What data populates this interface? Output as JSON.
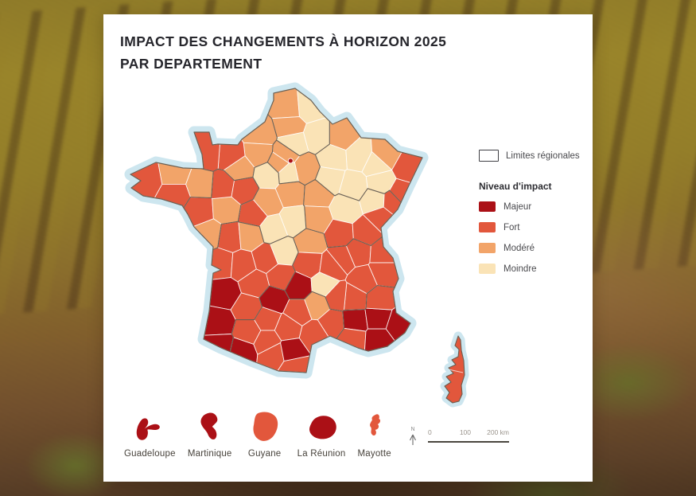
{
  "card": {
    "title_line1": "IMPACT DES CHANGEMENTS À HORIZON 2025",
    "title_line2": "PAR DEPARTEMENT"
  },
  "legend": {
    "regional_limits_label": "Limites régionales",
    "impact_title": "Niveau d'impact",
    "levels": [
      {
        "id": "majeur",
        "label": "Majeur",
        "color": "#ab1016"
      },
      {
        "id": "fort",
        "label": "Fort",
        "color": "#e2573c"
      },
      {
        "id": "modere",
        "label": "Modéré",
        "color": "#f2a469"
      },
      {
        "id": "moindre",
        "label": "Moindre",
        "color": "#fae3b6"
      }
    ]
  },
  "map": {
    "sea_halo_color": "#cde6ef",
    "department_border_color": "#ffffff",
    "region_border_color": "#6a5f52",
    "paris_level": "majeur",
    "corsica_level": "fort",
    "departments_format": [
      "code",
      "lon",
      "lat",
      "level",
      "region"
    ],
    "departments": [
      [
        "62",
        2.25,
        50.45,
        "modere",
        "HDF"
      ],
      [
        "59",
        3.15,
        50.5,
        "moindre",
        "HDF"
      ],
      [
        "80",
        2.3,
        49.9,
        "modere",
        "HDF"
      ],
      [
        "02",
        3.55,
        49.6,
        "moindre",
        "HDF"
      ],
      [
        "60",
        2.45,
        49.4,
        "moindre",
        "HDF"
      ],
      [
        "76",
        1.0,
        49.65,
        "modere",
        "NOR"
      ],
      [
        "27",
        0.95,
        49.1,
        "modere",
        "NOR"
      ],
      [
        "14",
        -0.35,
        49.0,
        "fort",
        "NOR"
      ],
      [
        "50",
        -1.35,
        49.05,
        "fort",
        "NOR"
      ],
      [
        "61",
        0.05,
        48.6,
        "modere",
        "NOR"
      ],
      [
        "08",
        4.6,
        49.6,
        "modere",
        "GES"
      ],
      [
        "51",
        4.25,
        48.95,
        "moindre",
        "GES"
      ],
      [
        "10",
        4.1,
        48.3,
        "moindre",
        "GES"
      ],
      [
        "52",
        5.15,
        48.1,
        "moindre",
        "GES"
      ],
      [
        "55",
        5.4,
        49.0,
        "moindre",
        "GES"
      ],
      [
        "54",
        6.15,
        48.75,
        "moindre",
        "GES"
      ],
      [
        "57",
        6.55,
        49.05,
        "modere",
        "GES"
      ],
      [
        "88",
        6.35,
        48.2,
        "moindre",
        "GES"
      ],
      [
        "67",
        7.6,
        48.65,
        "fort",
        "GES"
      ],
      [
        "68",
        7.25,
        47.85,
        "fort",
        "GES"
      ],
      [
        "77",
        2.95,
        48.6,
        "modere",
        "IDF"
      ],
      [
        "78",
        1.85,
        48.8,
        "modere",
        "IDF"
      ],
      [
        "95",
        2.1,
        49.05,
        "modere",
        "IDF"
      ],
      [
        "91",
        2.25,
        48.5,
        "moindre",
        "IDF"
      ],
      [
        "28",
        1.35,
        48.45,
        "moindre",
        "CVL"
      ],
      [
        "45",
        2.35,
        47.9,
        "modere",
        "CVL"
      ],
      [
        "41",
        1.3,
        47.6,
        "modere",
        "CVL"
      ],
      [
        "18",
        2.5,
        47.05,
        "moindre",
        "CVL"
      ],
      [
        "36",
        1.55,
        46.8,
        "moindre",
        "CVL"
      ],
      [
        "37",
        0.7,
        47.25,
        "fort",
        "CVL"
      ],
      [
        "89",
        3.55,
        47.85,
        "modere",
        "BFC"
      ],
      [
        "21",
        4.8,
        47.4,
        "moindre",
        "BFC"
      ],
      [
        "58",
        3.5,
        47.1,
        "modere",
        "BFC"
      ],
      [
        "71",
        4.55,
        46.65,
        "fort",
        "BFC"
      ],
      [
        "70",
        6.1,
        47.65,
        "moindre",
        "BFC"
      ],
      [
        "25",
        6.35,
        47.15,
        "fort",
        "BFC"
      ],
      [
        "39",
        5.7,
        46.7,
        "fort",
        "BFC"
      ],
      [
        "90",
        6.9,
        47.62,
        "fort",
        "BFC"
      ],
      [
        "29",
        -4.05,
        48.3,
        "fort",
        "BRE"
      ],
      [
        "22",
        -2.85,
        48.45,
        "modere",
        "BRE"
      ],
      [
        "56",
        -2.85,
        47.85,
        "fort",
        "BRE"
      ],
      [
        "35",
        -1.65,
        48.15,
        "modere",
        "BRE"
      ],
      [
        "44",
        -1.7,
        47.35,
        "fort",
        "PDL"
      ],
      [
        "49",
        -0.55,
        47.4,
        "modere",
        "PDL"
      ],
      [
        "53",
        -0.65,
        48.1,
        "fort",
        "PDL"
      ],
      [
        "72",
        0.2,
        48.0,
        "fort",
        "PDL"
      ],
      [
        "85",
        -1.3,
        46.65,
        "modere",
        "PDL"
      ],
      [
        "79",
        -0.35,
        46.55,
        "fort",
        "NAQ"
      ],
      [
        "86",
        0.5,
        46.6,
        "modere",
        "NAQ"
      ],
      [
        "17",
        -0.75,
        45.75,
        "fort",
        "NAQ"
      ],
      [
        "16",
        0.2,
        45.7,
        "fort",
        "NAQ"
      ],
      [
        "87",
        1.25,
        45.9,
        "fort",
        "NAQ"
      ],
      [
        "23",
        2.0,
        46.1,
        "moindre",
        "NAQ"
      ],
      [
        "19",
        1.9,
        45.35,
        "fort",
        "NAQ"
      ],
      [
        "24",
        0.75,
        45.15,
        "fort",
        "NAQ"
      ],
      [
        "33",
        -0.6,
        44.85,
        "majeur",
        "NAQ"
      ],
      [
        "40",
        -0.85,
        43.95,
        "majeur",
        "NAQ"
      ],
      [
        "47",
        0.45,
        44.4,
        "fort",
        "NAQ"
      ],
      [
        "64",
        -0.8,
        43.25,
        "majeur",
        "NAQ"
      ],
      [
        "65",
        0.15,
        43.1,
        "majeur",
        "OCC"
      ],
      [
        "32",
        0.45,
        43.7,
        "fort",
        "OCC"
      ],
      [
        "82",
        1.3,
        44.05,
        "fort",
        "OCC"
      ],
      [
        "46",
        1.6,
        44.65,
        "majeur",
        "OCC"
      ],
      [
        "31",
        1.3,
        43.4,
        "fort",
        "OCC"
      ],
      [
        "09",
        1.6,
        43.0,
        "fort",
        "OCC"
      ],
      [
        "81",
        2.2,
        43.8,
        "fort",
        "OCC"
      ],
      [
        "12",
        2.7,
        44.3,
        "fort",
        "OCC"
      ],
      [
        "48",
        3.5,
        44.5,
        "modere",
        "OCC"
      ],
      [
        "30",
        4.2,
        43.95,
        "fort",
        "OCC"
      ],
      [
        "34",
        3.4,
        43.6,
        "fort",
        "OCC"
      ],
      [
        "11",
        2.35,
        43.1,
        "majeur",
        "OCC"
      ],
      [
        "66",
        2.5,
        42.6,
        "fort",
        "OCC"
      ],
      [
        "03",
        3.2,
        46.4,
        "modere",
        "ARA"
      ],
      [
        "63",
        3.15,
        45.75,
        "fort",
        "ARA"
      ],
      [
        "15",
        2.7,
        45.05,
        "majeur",
        "ARA"
      ],
      [
        "43",
        3.85,
        45.1,
        "moindre",
        "ARA"
      ],
      [
        "42",
        4.2,
        45.65,
        "fort",
        "ARA"
      ],
      [
        "69",
        4.65,
        45.9,
        "fort",
        "ARA"
      ],
      [
        "01",
        5.35,
        46.1,
        "fort",
        "ARA"
      ],
      [
        "74",
        6.45,
        46.05,
        "fort",
        "ARA"
      ],
      [
        "73",
        6.45,
        45.5,
        "fort",
        "ARA"
      ],
      [
        "38",
        5.6,
        45.25,
        "fort",
        "ARA"
      ],
      [
        "26",
        5.15,
        44.7,
        "fort",
        "ARA"
      ],
      [
        "07",
        4.4,
        44.75,
        "fort",
        "ARA"
      ],
      [
        "84",
        5.2,
        44.0,
        "majeur",
        "PAC"
      ],
      [
        "13",
        5.1,
        43.5,
        "fort",
        "PAC"
      ],
      [
        "83",
        6.25,
        43.45,
        "majeur",
        "PAC"
      ],
      [
        "04",
        6.25,
        44.1,
        "majeur",
        "PAC"
      ],
      [
        "05",
        6.3,
        44.65,
        "fort",
        "PAC"
      ],
      [
        "06",
        7.15,
        43.9,
        "majeur",
        "PAC"
      ]
    ]
  },
  "overseas": [
    {
      "name": "Guadeloupe",
      "level": "majeur"
    },
    {
      "name": "Martinique",
      "level": "majeur"
    },
    {
      "name": "Guyane",
      "level": "fort"
    },
    {
      "name": "La Réunion",
      "level": "majeur"
    },
    {
      "name": "Mayotte",
      "level": "fort"
    }
  ],
  "scalebar": {
    "north_label": "N",
    "ticks": [
      "0",
      "100",
      "200 km"
    ]
  }
}
